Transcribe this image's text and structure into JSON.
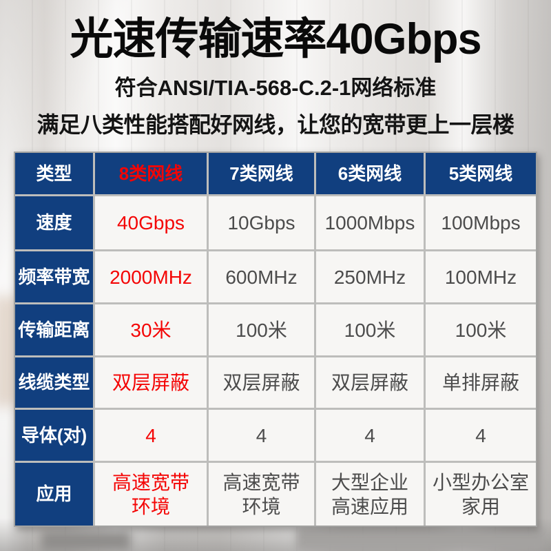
{
  "page": {
    "title": "光速传输速率40Gbps",
    "subtitle1": "符合ANSI/TIA-568-C.2-1网络标准",
    "subtitle2": "满足八类性能搭配好网线，让您的宽带更上一层楼"
  },
  "colors": {
    "header_blue": "#113f7f",
    "highlight_red": "#f40505",
    "cell_bg": "#f7f6f4",
    "cell_text": "#4c4c4c"
  },
  "chart_data": {
    "type": "table",
    "title": "光速传输速率40Gbps",
    "columns": [
      "类型",
      "8类网线",
      "7类网线",
      "6类网线",
      "5类网线"
    ],
    "highlight_column": "8类网线",
    "rows": [
      {
        "label": "速度",
        "values": [
          "40Gbps",
          "10Gbps",
          "1000Mbps",
          "100Mbps"
        ]
      },
      {
        "label": "频率带宽",
        "values": [
          "2000MHz",
          "600MHz",
          "250MHz",
          "100MHz"
        ]
      },
      {
        "label": "传输距离",
        "values": [
          "30米",
          "100米",
          "100米",
          "100米"
        ]
      },
      {
        "label": "线缆类型",
        "values": [
          "双层屏蔽",
          "双层屏蔽",
          "双层屏蔽",
          "单排屏蔽"
        ]
      },
      {
        "label": "导体(对)",
        "values": [
          "4",
          "4",
          "4",
          "4"
        ]
      },
      {
        "label": "应用",
        "values": [
          "高速宽带\n环境",
          "高速宽带\n环境",
          "大型企业\n高速应用",
          "小型办公室\n家用"
        ]
      }
    ]
  }
}
